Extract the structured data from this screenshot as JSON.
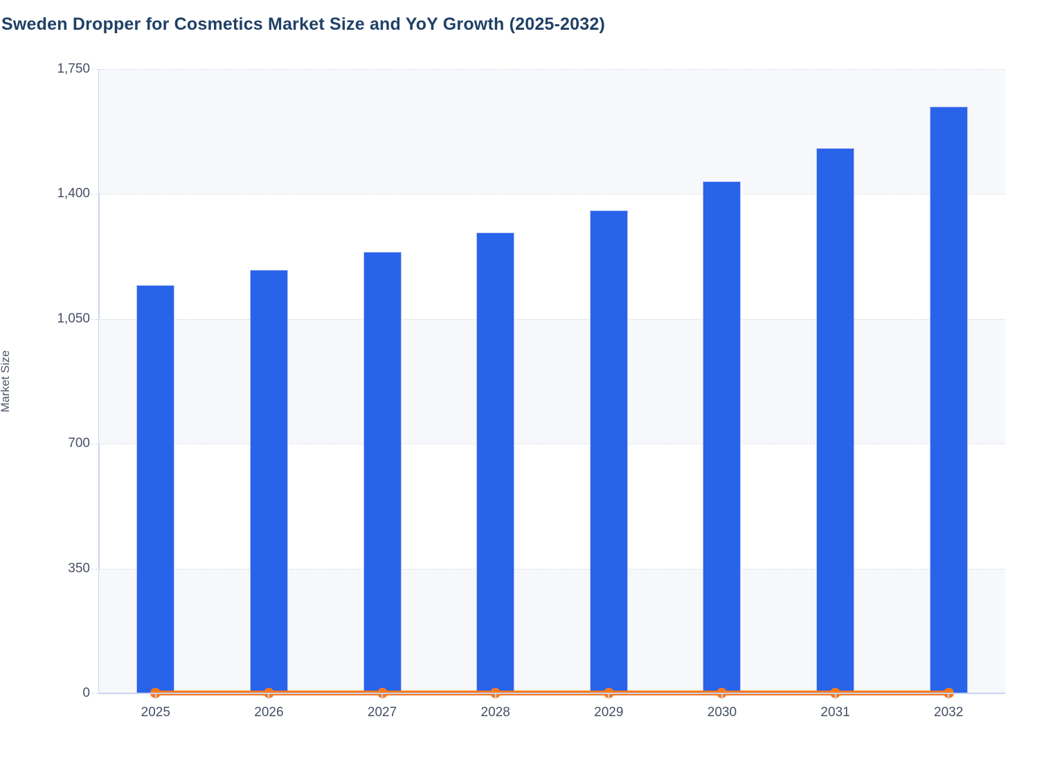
{
  "page": {
    "title": "Sweden Dropper for Cosmetics Market Size and YoY Growth (2025-2032)"
  },
  "chart_data": {
    "type": "bar",
    "title": "Sweden Dropper for Cosmetics Market Size and YoY Growth (2025-2032)",
    "xlabel": "",
    "ylabel": "Market Size",
    "categories": [
      "2025",
      "2026",
      "2027",
      "2028",
      "2029",
      "2030",
      "2031",
      "2032"
    ],
    "series": [
      {
        "name": "Market Size",
        "type": "bar",
        "color": "#2963e9",
        "values": [
          1145,
          1188,
          1238,
          1292,
          1355,
          1435,
          1528,
          1645
        ]
      },
      {
        "name": "YoY Growth",
        "type": "line",
        "color": "#f7791e",
        "values": [
          0,
          0,
          0,
          0,
          0,
          0,
          0,
          0
        ]
      }
    ],
    "y_axis": {
      "min": 0,
      "max": 1750,
      "tick_values": [
        0,
        350,
        700,
        1050,
        1400,
        1750
      ],
      "tick_labels": [
        "0",
        "350",
        "700",
        "1,050",
        "1,400",
        "1,750"
      ],
      "shaded_bands": [
        [
          1400,
          1750
        ],
        [
          700,
          1050
        ],
        [
          0,
          350
        ]
      ]
    },
    "legend": "none",
    "grid": "horizontal-dashed",
    "colors": {
      "bar_fill": "#2963e9",
      "bar_border": "#b9c7f1",
      "line": "#f7791e",
      "band_fill": "#f7f8fb",
      "gridline": "#dcdfe8",
      "axis": "#c9d3ec",
      "title_text": "#1f4066",
      "tick_text": "#454e63",
      "axis_title_text": "#4a5568"
    }
  }
}
